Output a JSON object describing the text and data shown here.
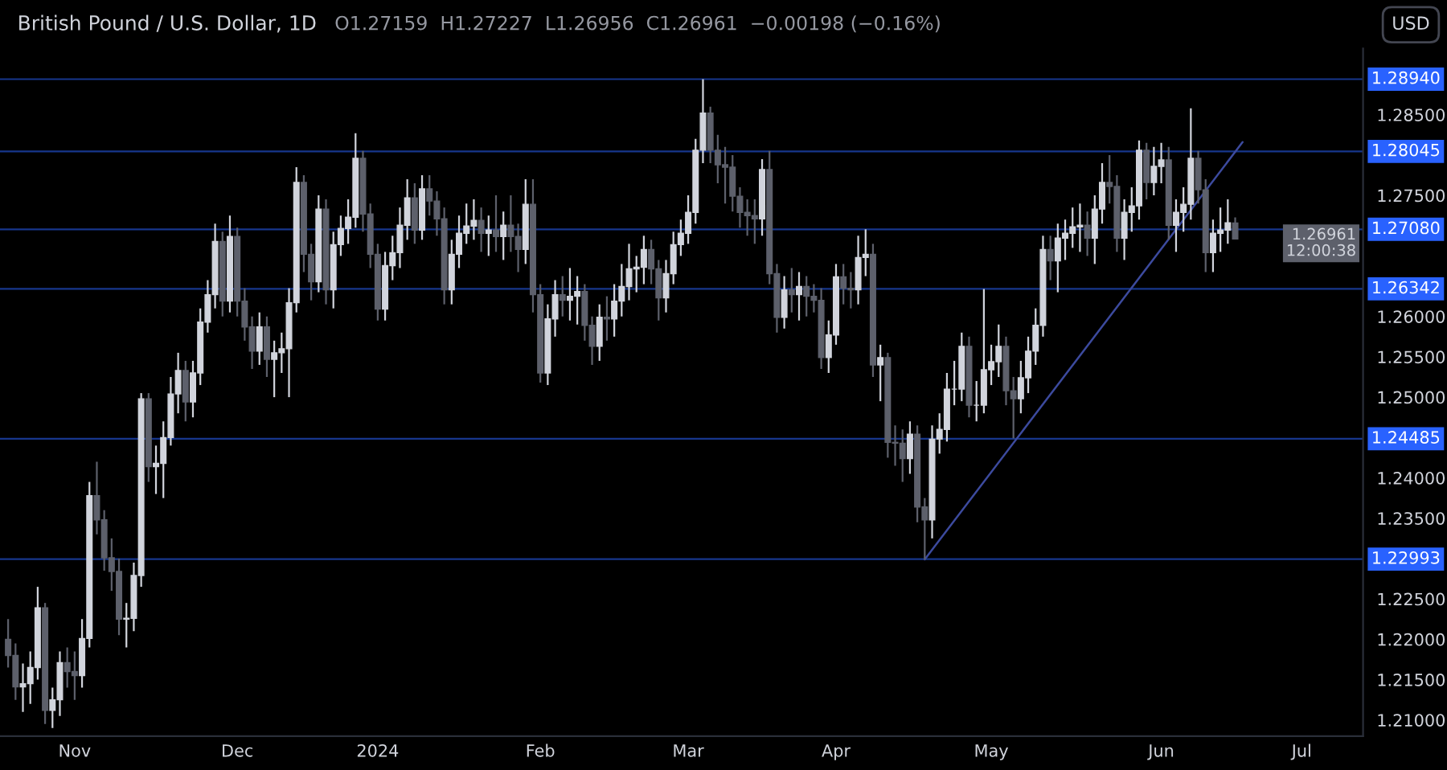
{
  "chart_data": {
    "type": "candlestick",
    "title": "British Pound / U.S. Dollar, 1D",
    "subtitle": "O1.27159  H1.27227  L1.26956  C1.26961  −0.00198 (−0.16%)",
    "annotations": [
      "USD",
      "1.26961\n12:00:38"
    ],
    "categories": [
      null,
      null,
      null,
      null,
      null,
      null,
      null,
      null,
      null,
      "Nov",
      null,
      null,
      null,
      null,
      null,
      null,
      null,
      null,
      null,
      null,
      null,
      null,
      null,
      null,
      null,
      null,
      null,
      null,
      null,
      null,
      null,
      "Dec",
      null,
      null,
      null,
      null,
      null,
      null,
      null,
      null,
      null,
      null,
      null,
      null,
      null,
      null,
      null,
      null,
      null,
      null,
      "2024",
      null,
      null,
      null,
      null,
      null,
      null,
      null,
      null,
      null,
      null,
      null,
      null,
      null,
      null,
      null,
      null,
      null,
      null,
      null,
      null,
      null,
      "Feb",
      null,
      null,
      null,
      null,
      null,
      null,
      null,
      null,
      null,
      null,
      null,
      null,
      null,
      null,
      null,
      null,
      null,
      null,
      null,
      "Mar",
      null,
      null,
      null,
      null,
      null,
      null,
      null,
      null,
      null,
      null,
      null,
      null,
      null,
      null,
      null,
      null,
      null,
      null,
      null,
      "Apr",
      null,
      null,
      null,
      null,
      null,
      null,
      null,
      null,
      null,
      null,
      null,
      null,
      null,
      null,
      null,
      null,
      null,
      null,
      null,
      null,
      "May",
      null,
      null,
      null,
      null,
      null,
      null,
      null,
      null,
      null,
      null,
      null,
      null,
      null,
      null,
      null,
      null,
      null,
      null,
      null,
      null,
      null,
      null,
      "Jun",
      null,
      null,
      null,
      null,
      null,
      null,
      null,
      null,
      null,
      null,
      null,
      null,
      null,
      null,
      null,
      null,
      null,
      null,
      "Jul"
    ],
    "ohlc": [
      [
        1.22,
        1.2225,
        1.2165,
        1.218
      ],
      [
        1.218,
        1.2195,
        1.2125,
        1.2141
      ],
      [
        1.2141,
        1.217,
        1.211,
        1.2145
      ],
      [
        1.2145,
        1.2185,
        1.212,
        1.2165
      ],
      [
        1.2165,
        1.2265,
        1.215,
        1.2239
      ],
      [
        1.2239,
        1.2245,
        1.2095,
        1.2112
      ],
      [
        1.2112,
        1.214,
        1.209,
        1.2125
      ],
      [
        1.2125,
        1.2185,
        1.2105,
        1.2171
      ],
      [
        1.2171,
        1.219,
        1.214,
        1.216
      ],
      [
        1.216,
        1.2185,
        1.2125,
        1.2155
      ],
      [
        1.2155,
        1.2225,
        1.214,
        1.2201
      ],
      [
        1.2201,
        1.2395,
        1.219,
        1.2378
      ],
      [
        1.2378,
        1.242,
        1.233,
        1.2348
      ],
      [
        1.2348,
        1.236,
        1.2285,
        1.2301
      ],
      [
        1.2301,
        1.2325,
        1.226,
        1.2284
      ],
      [
        1.2284,
        1.23,
        1.2205,
        1.2225
      ],
      [
        1.2225,
        1.2245,
        1.219,
        1.2226
      ],
      [
        1.2226,
        1.2295,
        1.221,
        1.2279
      ],
      [
        1.2279,
        1.2505,
        1.2265,
        1.2498
      ],
      [
        1.2498,
        1.2505,
        1.2395,
        1.2414
      ],
      [
        1.2414,
        1.244,
        1.238,
        1.2418
      ],
      [
        1.2418,
        1.247,
        1.2375,
        1.245
      ],
      [
        1.245,
        1.2525,
        1.244,
        1.2504
      ],
      [
        1.2504,
        1.2555,
        1.248,
        1.2533
      ],
      [
        1.2533,
        1.2545,
        1.247,
        1.2494
      ],
      [
        1.2494,
        1.2545,
        1.2475,
        1.253
      ],
      [
        1.253,
        1.261,
        1.2515,
        1.2593
      ],
      [
        1.2593,
        1.2645,
        1.258,
        1.2627
      ],
      [
        1.2627,
        1.2715,
        1.261,
        1.2693
      ],
      [
        1.2693,
        1.2705,
        1.26,
        1.2619
      ],
      [
        1.2619,
        1.2725,
        1.2605,
        1.2699
      ],
      [
        1.2699,
        1.271,
        1.26,
        1.2619
      ],
      [
        1.2619,
        1.2635,
        1.257,
        1.2587
      ],
      [
        1.2587,
        1.26,
        1.2535,
        1.2557
      ],
      [
        1.2557,
        1.2605,
        1.254,
        1.2587
      ],
      [
        1.2587,
        1.26,
        1.2525,
        1.2547
      ],
      [
        1.2547,
        1.257,
        1.25,
        1.2555
      ],
      [
        1.2555,
        1.258,
        1.253,
        1.256
      ],
      [
        1.256,
        1.2635,
        1.25,
        1.2617
      ],
      [
        1.2617,
        1.2785,
        1.2605,
        1.2766
      ],
      [
        1.2766,
        1.2775,
        1.2655,
        1.2677
      ],
      [
        1.2677,
        1.269,
        1.262,
        1.2643
      ],
      [
        1.2643,
        1.275,
        1.263,
        1.2733
      ],
      [
        1.2733,
        1.2745,
        1.2615,
        1.2633
      ],
      [
        1.2633,
        1.2705,
        1.261,
        1.2689
      ],
      [
        1.2689,
        1.2725,
        1.2675,
        1.2709
      ],
      [
        1.2709,
        1.2745,
        1.269,
        1.2723
      ],
      [
        1.2723,
        1.2827,
        1.271,
        1.2796
      ],
      [
        1.2796,
        1.2805,
        1.2705,
        1.2727
      ],
      [
        1.2727,
        1.274,
        1.266,
        1.2677
      ],
      [
        1.2677,
        1.269,
        1.2595,
        1.2609
      ],
      [
        1.2609,
        1.268,
        1.2595,
        1.2663
      ],
      [
        1.2663,
        1.27,
        1.2645,
        1.2679
      ],
      [
        1.2679,
        1.2735,
        1.266,
        1.2713
      ],
      [
        1.2713,
        1.277,
        1.2695,
        1.2747
      ],
      [
        1.2747,
        1.2765,
        1.269,
        1.2707
      ],
      [
        1.2707,
        1.2775,
        1.2695,
        1.2758
      ],
      [
        1.2758,
        1.2775,
        1.2725,
        1.2743
      ],
      [
        1.2743,
        1.2755,
        1.27,
        1.2721
      ],
      [
        1.2721,
        1.2735,
        1.2615,
        1.2633
      ],
      [
        1.2633,
        1.2695,
        1.2615,
        1.2677
      ],
      [
        1.2677,
        1.2725,
        1.266,
        1.2703
      ],
      [
        1.2703,
        1.274,
        1.269,
        1.2712
      ],
      [
        1.2712,
        1.2745,
        1.2695,
        1.2719
      ],
      [
        1.2719,
        1.2735,
        1.268,
        1.2703
      ],
      [
        1.2703,
        1.2725,
        1.2675,
        1.2707
      ],
      [
        1.2707,
        1.275,
        1.268,
        1.2699
      ],
      [
        1.2699,
        1.273,
        1.267,
        1.2713
      ],
      [
        1.2713,
        1.275,
        1.268,
        1.2699
      ],
      [
        1.2699,
        1.2715,
        1.2655,
        1.2683
      ],
      [
        1.2683,
        1.277,
        1.2665,
        1.2739
      ],
      [
        1.2739,
        1.277,
        1.2605,
        1.2627
      ],
      [
        1.2627,
        1.264,
        1.2518,
        1.253
      ],
      [
        1.253,
        1.2615,
        1.2515,
        1.2597
      ],
      [
        1.2597,
        1.2645,
        1.2575,
        1.2627
      ],
      [
        1.2627,
        1.265,
        1.26,
        1.262
      ],
      [
        1.262,
        1.266,
        1.2595,
        1.2625
      ],
      [
        1.2625,
        1.265,
        1.259,
        1.2631
      ],
      [
        1.2631,
        1.264,
        1.257,
        1.2589
      ],
      [
        1.2589,
        1.26,
        1.254,
        1.2563
      ],
      [
        1.2563,
        1.2615,
        1.2545,
        1.2599
      ],
      [
        1.2599,
        1.2625,
        1.257,
        1.2597
      ],
      [
        1.2597,
        1.264,
        1.2575,
        1.2619
      ],
      [
        1.2619,
        1.2665,
        1.26,
        1.2637
      ],
      [
        1.2637,
        1.269,
        1.262,
        1.2659
      ],
      [
        1.2659,
        1.2675,
        1.263,
        1.2661
      ],
      [
        1.2661,
        1.27,
        1.264,
        1.2683
      ],
      [
        1.2683,
        1.2695,
        1.264,
        1.2659
      ],
      [
        1.2659,
        1.267,
        1.2595,
        1.2623
      ],
      [
        1.2623,
        1.267,
        1.2605,
        1.2653
      ],
      [
        1.2653,
        1.2705,
        1.264,
        1.2689
      ],
      [
        1.2689,
        1.272,
        1.2675,
        1.2703
      ],
      [
        1.2703,
        1.275,
        1.269,
        1.2729
      ],
      [
        1.2729,
        1.282,
        1.2715,
        1.2806
      ],
      [
        1.2806,
        1.2894,
        1.279,
        1.2852
      ],
      [
        1.2852,
        1.286,
        1.279,
        1.2806
      ],
      [
        1.2806,
        1.2825,
        1.2765,
        1.2788
      ],
      [
        1.2788,
        1.281,
        1.274,
        1.2785
      ],
      [
        1.2785,
        1.28,
        1.273,
        1.2749
      ],
      [
        1.2749,
        1.276,
        1.271,
        1.2729
      ],
      [
        1.2729,
        1.2745,
        1.27,
        1.2725
      ],
      [
        1.2725,
        1.2745,
        1.269,
        1.2721
      ],
      [
        1.2721,
        1.2795,
        1.27,
        1.2782
      ],
      [
        1.2782,
        1.2805,
        1.264,
        1.2653
      ],
      [
        1.2653,
        1.2665,
        1.258,
        1.2599
      ],
      [
        1.2599,
        1.265,
        1.2585,
        1.2633
      ],
      [
        1.2633,
        1.266,
        1.2605,
        1.2627
      ],
      [
        1.2627,
        1.2655,
        1.2595,
        1.2637
      ],
      [
        1.2637,
        1.265,
        1.26,
        1.2625
      ],
      [
        1.2625,
        1.264,
        1.2605,
        1.262
      ],
      [
        1.262,
        1.2635,
        1.2535,
        1.2549
      ],
      [
        1.2549,
        1.2595,
        1.253,
        1.2577
      ],
      [
        1.2577,
        1.2665,
        1.2565,
        1.2649
      ],
      [
        1.2649,
        1.2665,
        1.2615,
        1.2635
      ],
      [
        1.2635,
        1.2655,
        1.261,
        1.2633
      ],
      [
        1.2633,
        1.27,
        1.2615,
        1.2673
      ],
      [
        1.2673,
        1.2708,
        1.265,
        1.2677
      ],
      [
        1.2677,
        1.269,
        1.2525,
        1.254
      ],
      [
        1.254,
        1.2565,
        1.2495,
        1.2549
      ],
      [
        1.2549,
        1.2555,
        1.2425,
        1.2444
      ],
      [
        1.2444,
        1.2465,
        1.2415,
        1.2443
      ],
      [
        1.2443,
        1.246,
        1.2395,
        1.2424
      ],
      [
        1.2424,
        1.247,
        1.2405,
        1.2454
      ],
      [
        1.2454,
        1.2465,
        1.2345,
        1.2364
      ],
      [
        1.2364,
        1.2375,
        1.2299,
        1.2348
      ],
      [
        1.2348,
        1.2465,
        1.2325,
        1.2448
      ],
      [
        1.2448,
        1.248,
        1.243,
        1.246
      ],
      [
        1.246,
        1.253,
        1.2445,
        1.251
      ],
      [
        1.251,
        1.2545,
        1.249,
        1.251
      ],
      [
        1.251,
        1.258,
        1.2495,
        1.2563
      ],
      [
        1.2563,
        1.2575,
        1.2475,
        1.249
      ],
      [
        1.249,
        1.252,
        1.247,
        1.249
      ],
      [
        1.249,
        1.2634,
        1.248,
        1.2534
      ],
      [
        1.2534,
        1.2565,
        1.2515,
        1.2544
      ],
      [
        1.2544,
        1.259,
        1.2525,
        1.2563
      ],
      [
        1.2563,
        1.2575,
        1.249,
        1.2508
      ],
      [
        1.2508,
        1.2525,
        1.2449,
        1.2498
      ],
      [
        1.2498,
        1.2545,
        1.248,
        1.2524
      ],
      [
        1.2524,
        1.2575,
        1.2505,
        1.2557
      ],
      [
        1.2557,
        1.261,
        1.254,
        1.2589
      ],
      [
        1.2589,
        1.27,
        1.2575,
        1.2683
      ],
      [
        1.2683,
        1.27,
        1.2645,
        1.2669
      ],
      [
        1.2669,
        1.2715,
        1.263,
        1.2697
      ],
      [
        1.2697,
        1.272,
        1.267,
        1.2703
      ],
      [
        1.2703,
        1.2735,
        1.2685,
        1.2711
      ],
      [
        1.2711,
        1.274,
        1.268,
        1.2713
      ],
      [
        1.2713,
        1.273,
        1.2675,
        1.2697
      ],
      [
        1.2697,
        1.275,
        1.2665,
        1.2733
      ],
      [
        1.2733,
        1.279,
        1.2715,
        1.2766
      ],
      [
        1.2766,
        1.28,
        1.274,
        1.2761
      ],
      [
        1.2761,
        1.2775,
        1.268,
        1.2697
      ],
      [
        1.2697,
        1.2745,
        1.267,
        1.2729
      ],
      [
        1.2729,
        1.276,
        1.2705,
        1.2737
      ],
      [
        1.2737,
        1.2818,
        1.272,
        1.2806
      ],
      [
        1.2806,
        1.2815,
        1.2745,
        1.2766
      ],
      [
        1.2766,
        1.281,
        1.275,
        1.2786
      ],
      [
        1.2786,
        1.2815,
        1.2765,
        1.2794
      ],
      [
        1.2794,
        1.281,
        1.2695,
        1.2713
      ],
      [
        1.2713,
        1.2745,
        1.268,
        1.2729
      ],
      [
        1.2729,
        1.276,
        1.2705,
        1.2739
      ],
      [
        1.2739,
        1.2858,
        1.272,
        1.2796
      ],
      [
        1.2796,
        1.2805,
        1.274,
        1.2757
      ],
      [
        1.2757,
        1.277,
        1.2655,
        1.2679
      ],
      [
        1.2679,
        1.272,
        1.2655,
        1.2703
      ],
      [
        1.2703,
        1.2735,
        1.268,
        1.2707
      ],
      [
        1.2707,
        1.2745,
        1.269,
        1.2716
      ],
      [
        1.27159,
        1.27227,
        1.26956,
        1.26961
      ],
      null,
      null,
      null,
      null,
      null,
      null,
      null,
      null,
      null
    ],
    "series": [
      {
        "type": "line",
        "color": "#3c4a9e",
        "values": [
          null,
          null,
          null,
          null,
          null,
          null,
          null,
          null,
          null,
          null,
          null,
          null,
          null,
          null,
          null,
          null,
          null,
          null,
          null,
          null,
          null,
          null,
          null,
          null,
          null,
          null,
          null,
          null,
          null,
          null,
          null,
          null,
          null,
          null,
          null,
          null,
          null,
          null,
          null,
          null,
          null,
          null,
          null,
          null,
          null,
          null,
          null,
          null,
          null,
          null,
          null,
          null,
          null,
          null,
          null,
          null,
          null,
          null,
          null,
          null,
          null,
          null,
          null,
          null,
          null,
          null,
          null,
          null,
          null,
          null,
          null,
          null,
          null,
          null,
          null,
          null,
          null,
          null,
          null,
          null,
          null,
          null,
          null,
          null,
          null,
          null,
          null,
          null,
          null,
          null,
          null,
          null,
          null,
          null,
          null,
          null,
          null,
          null,
          null,
          null,
          null,
          null,
          null,
          null,
          null,
          null,
          null,
          null,
          null,
          null,
          null,
          null,
          null,
          null,
          null,
          null,
          null,
          null,
          null,
          null,
          null,
          null,
          null,
          null,
          1.2299,
          null,
          null,
          null,
          null,
          null,
          null,
          null,
          null,
          null,
          null,
          null,
          null,
          null,
          null,
          null,
          null,
          null,
          null,
          null,
          null,
          null,
          null,
          null,
          null,
          null,
          null,
          null,
          null,
          null,
          null,
          null,
          null,
          null,
          null,
          null,
          null,
          null,
          null,
          null,
          null,
          null,
          null,
          1.2816,
          null,
          null,
          null,
          null,
          null,
          null,
          null,
          null
        ]
      }
    ],
    "ref_lines": [
      {
        "axis": "y",
        "value": 1.2894,
        "label": "1.28940",
        "color": "#2962ff"
      },
      {
        "axis": "y",
        "value": 1.28045,
        "label": "1.28045",
        "color": "#2962ff"
      },
      {
        "axis": "y",
        "value": 1.2708,
        "label": "1.27080",
        "color": "#2962ff"
      },
      {
        "axis": "y",
        "value": 1.26342,
        "label": "1.26342",
        "color": "#2962ff"
      },
      {
        "axis": "y",
        "value": 1.24485,
        "label": "1.24485",
        "color": "#2962ff"
      },
      {
        "axis": "y",
        "value": 1.22993,
        "label": "1.22993",
        "color": "#2962ff"
      }
    ],
    "ylim": [
      1.208,
      1.2932
    ],
    "yticks": [
      {
        "value": 1.21,
        "label": "1.21000"
      },
      {
        "value": 1.215,
        "label": "1.21500"
      },
      {
        "value": 1.22,
        "label": "1.22000"
      },
      {
        "value": 1.225,
        "label": "1.22500"
      },
      {
        "value": 1.235,
        "label": "1.23500"
      },
      {
        "value": 1.24,
        "label": "1.24000"
      },
      {
        "value": 1.25,
        "label": "1.25000"
      },
      {
        "value": 1.255,
        "label": "1.25500"
      },
      {
        "value": 1.26,
        "label": "1.26000"
      },
      {
        "value": 1.275,
        "label": "1.27500"
      },
      {
        "value": 1.285,
        "label": "1.28500"
      }
    ]
  }
}
